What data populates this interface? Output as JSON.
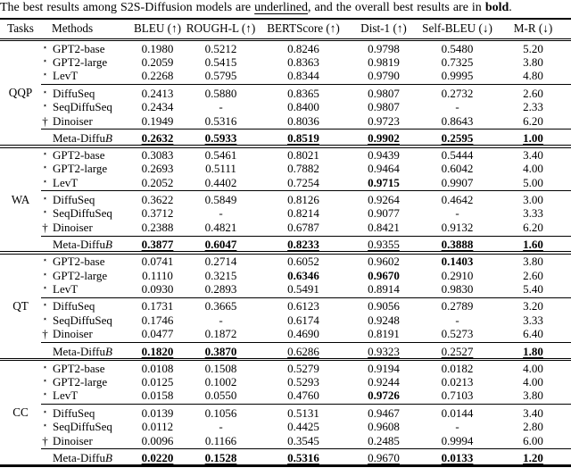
{
  "caption": {
    "part1": "The best results among S2S-Diffusion models are ",
    "underlined_word": "underlined",
    "part2": ", and the overall best results are in ",
    "bold_word": "bold",
    "part3": "."
  },
  "markers": {
    "star": "⋆",
    "dagger": "†"
  },
  "columns": [
    "Tasks",
    "Methods",
    "BLEU (↑)",
    "ROUGH-L (↑)",
    "BERTScore (↑)",
    "Dist-1 (↑)",
    "Self-BLEU (↓)",
    "M-R (↓)"
  ],
  "sections": [
    {
      "task": "QQP",
      "groups": [
        [
          {
            "marker": "star",
            "method": "GPT2-base",
            "values": [
              [
                "0.1980",
                ""
              ],
              [
                "0.5212",
                ""
              ],
              [
                "0.8246",
                ""
              ],
              [
                "0.9798",
                ""
              ],
              [
                "0.5480",
                ""
              ],
              [
                "5.20",
                ""
              ]
            ]
          },
          {
            "marker": "star",
            "method": "GPT2-large",
            "values": [
              [
                "0.2059",
                ""
              ],
              [
                "0.5415",
                ""
              ],
              [
                "0.8363",
                ""
              ],
              [
                "0.9819",
                ""
              ],
              [
                "0.7325",
                ""
              ],
              [
                "3.80",
                ""
              ]
            ]
          },
          {
            "marker": "star",
            "method": "LevT",
            "values": [
              [
                "0.2268",
                ""
              ],
              [
                "0.5795",
                ""
              ],
              [
                "0.8344",
                ""
              ],
              [
                "0.9790",
                ""
              ],
              [
                "0.9995",
                ""
              ],
              [
                "4.80",
                ""
              ]
            ]
          }
        ],
        [
          {
            "marker": "star",
            "method": "DiffuSeq",
            "values": [
              [
                "0.2413",
                ""
              ],
              [
                "0.5880",
                ""
              ],
              [
                "0.8365",
                ""
              ],
              [
                "0.9807",
                ""
              ],
              [
                "0.2732",
                ""
              ],
              [
                "2.60",
                ""
              ]
            ]
          },
          {
            "marker": "star",
            "method": "SeqDiffuSeq",
            "values": [
              [
                "0.2434",
                ""
              ],
              [
                "-",
                ""
              ],
              [
                "0.8400",
                ""
              ],
              [
                "0.9807",
                ""
              ],
              [
                "-",
                ""
              ],
              [
                "2.33",
                ""
              ]
            ]
          },
          {
            "marker": "dagger",
            "method": "Dinoiser",
            "values": [
              [
                "0.1949",
                ""
              ],
              [
                "0.5316",
                ""
              ],
              [
                "0.8036",
                ""
              ],
              [
                "0.9723",
                ""
              ],
              [
                "0.8643",
                ""
              ],
              [
                "6.20",
                ""
              ]
            ]
          }
        ],
        [
          {
            "marker": "",
            "method": "Meta-Diffu",
            "method_italic_suffix": "B",
            "values": [
              [
                "0.2632",
                "bu"
              ],
              [
                "0.5933",
                "bu"
              ],
              [
                "0.8519",
                "bu"
              ],
              [
                "0.9902",
                "bu"
              ],
              [
                "0.2595",
                "bu"
              ],
              [
                "1.00",
                "bu"
              ]
            ]
          }
        ]
      ]
    },
    {
      "task": "WA",
      "groups": [
        [
          {
            "marker": "star",
            "method": "GPT2-base",
            "values": [
              [
                "0.3083",
                ""
              ],
              [
                "0.5461",
                ""
              ],
              [
                "0.8021",
                ""
              ],
              [
                "0.9439",
                ""
              ],
              [
                "0.5444",
                ""
              ],
              [
                "3.40",
                ""
              ]
            ]
          },
          {
            "marker": "star",
            "method": "GPT2-large",
            "values": [
              [
                "0.2693",
                ""
              ],
              [
                "0.5111",
                ""
              ],
              [
                "0.7882",
                ""
              ],
              [
                "0.9464",
                ""
              ],
              [
                "0.6042",
                ""
              ],
              [
                "4.00",
                ""
              ]
            ]
          },
          {
            "marker": "star",
            "method": "LevT",
            "values": [
              [
                "0.2052",
                ""
              ],
              [
                "0.4402",
                ""
              ],
              [
                "0.7254",
                ""
              ],
              [
                "0.9715",
                "b"
              ],
              [
                "0.9907",
                ""
              ],
              [
                "5.00",
                ""
              ]
            ]
          }
        ],
        [
          {
            "marker": "star",
            "method": "DiffuSeq",
            "values": [
              [
                "0.3622",
                ""
              ],
              [
                "0.5849",
                ""
              ],
              [
                "0.8126",
                ""
              ],
              [
                "0.9264",
                ""
              ],
              [
                "0.4642",
                ""
              ],
              [
                "3.00",
                ""
              ]
            ]
          },
          {
            "marker": "star",
            "method": "SeqDiffuSeq",
            "values": [
              [
                "0.3712",
                ""
              ],
              [
                "-",
                ""
              ],
              [
                "0.8214",
                ""
              ],
              [
                "0.9077",
                ""
              ],
              [
                "-",
                ""
              ],
              [
                "3.33",
                ""
              ]
            ]
          },
          {
            "marker": "dagger",
            "method": "Dinoiser",
            "values": [
              [
                "0.2388",
                ""
              ],
              [
                "0.4821",
                ""
              ],
              [
                "0.6787",
                ""
              ],
              [
                "0.8421",
                ""
              ],
              [
                "0.9132",
                ""
              ],
              [
                "6.20",
                ""
              ]
            ]
          }
        ],
        [
          {
            "marker": "",
            "method": "Meta-Diffu",
            "method_italic_suffix": "B",
            "values": [
              [
                "0.3877",
                "bu"
              ],
              [
                "0.6047",
                "bu"
              ],
              [
                "0.8233",
                "bu"
              ],
              [
                "0.9355",
                "u"
              ],
              [
                "0.3888",
                "bu"
              ],
              [
                "1.60",
                "bu"
              ]
            ]
          }
        ]
      ]
    },
    {
      "task": "QT",
      "groups": [
        [
          {
            "marker": "star",
            "method": "GPT2-base",
            "values": [
              [
                "0.0741",
                ""
              ],
              [
                "0.2714",
                ""
              ],
              [
                "0.6052",
                ""
              ],
              [
                "0.9602",
                ""
              ],
              [
                "0.1403",
                "b"
              ],
              [
                "3.80",
                ""
              ]
            ]
          },
          {
            "marker": "star",
            "method": "GPT2-large",
            "values": [
              [
                "0.1110",
                ""
              ],
              [
                "0.3215",
                ""
              ],
              [
                "0.6346",
                "b"
              ],
              [
                "0.9670",
                "b"
              ],
              [
                "0.2910",
                ""
              ],
              [
                "2.60",
                ""
              ]
            ]
          },
          {
            "marker": "star",
            "method": "LevT",
            "values": [
              [
                "0.0930",
                ""
              ],
              [
                "0.2893",
                ""
              ],
              [
                "0.5491",
                ""
              ],
              [
                "0.8914",
                ""
              ],
              [
                "0.9830",
                ""
              ],
              [
                "5.40",
                ""
              ]
            ]
          }
        ],
        [
          {
            "marker": "star",
            "method": "DiffuSeq",
            "values": [
              [
                "0.1731",
                ""
              ],
              [
                "0.3665",
                ""
              ],
              [
                "0.6123",
                ""
              ],
              [
                "0.9056",
                ""
              ],
              [
                "0.2789",
                ""
              ],
              [
                "3.20",
                ""
              ]
            ]
          },
          {
            "marker": "star",
            "method": "SeqDiffuSeq",
            "values": [
              [
                "0.1746",
                ""
              ],
              [
                "-",
                ""
              ],
              [
                "0.6174",
                ""
              ],
              [
                "0.9248",
                ""
              ],
              [
                "-",
                ""
              ],
              [
                "3.33",
                ""
              ]
            ]
          },
          {
            "marker": "dagger",
            "method": "Dinoiser",
            "values": [
              [
                "0.0477",
                ""
              ],
              [
                "0.1872",
                ""
              ],
              [
                "0.4690",
                ""
              ],
              [
                "0.8191",
                ""
              ],
              [
                "0.5273",
                ""
              ],
              [
                "6.40",
                ""
              ]
            ]
          }
        ],
        [
          {
            "marker": "",
            "method": "Meta-Diffu",
            "method_italic_suffix": "B",
            "values": [
              [
                "0.1820",
                "bu"
              ],
              [
                "0.3870",
                "bu"
              ],
              [
                "0.6286",
                "u"
              ],
              [
                "0.9323",
                "u"
              ],
              [
                "0.2527",
                "u"
              ],
              [
                "1.80",
                "bu"
              ]
            ]
          }
        ]
      ]
    },
    {
      "task": "CC",
      "groups": [
        [
          {
            "marker": "star",
            "method": "GPT2-base",
            "values": [
              [
                "0.0108",
                ""
              ],
              [
                "0.1508",
                ""
              ],
              [
                "0.5279",
                ""
              ],
              [
                "0.9194",
                ""
              ],
              [
                "0.0182",
                ""
              ],
              [
                "4.00",
                ""
              ]
            ]
          },
          {
            "marker": "star",
            "method": "GPT2-large",
            "values": [
              [
                "0.0125",
                ""
              ],
              [
                "0.1002",
                ""
              ],
              [
                "0.5293",
                ""
              ],
              [
                "0.9244",
                ""
              ],
              [
                "0.0213",
                ""
              ],
              [
                "4.00",
                ""
              ]
            ]
          },
          {
            "marker": "star",
            "method": "LevT",
            "values": [
              [
                "0.0158",
                ""
              ],
              [
                "0.0550",
                ""
              ],
              [
                "0.4760",
                ""
              ],
              [
                "0.9726",
                "b"
              ],
              [
                "0.7103",
                ""
              ],
              [
                "3.80",
                ""
              ]
            ]
          }
        ],
        [
          {
            "marker": "star",
            "method": "DiffuSeq",
            "values": [
              [
                "0.0139",
                ""
              ],
              [
                "0.1056",
                ""
              ],
              [
                "0.5131",
                ""
              ],
              [
                "0.9467",
                ""
              ],
              [
                "0.0144",
                ""
              ],
              [
                "3.40",
                ""
              ]
            ]
          },
          {
            "marker": "star",
            "method": "SeqDiffuSeq",
            "values": [
              [
                "0.0112",
                ""
              ],
              [
                "-",
                ""
              ],
              [
                "0.4425",
                ""
              ],
              [
                "0.9608",
                ""
              ],
              [
                "-",
                ""
              ],
              [
                "2.80",
                ""
              ]
            ]
          },
          {
            "marker": "dagger",
            "method": "Dinoiser",
            "values": [
              [
                "0.0096",
                ""
              ],
              [
                "0.1166",
                ""
              ],
              [
                "0.3545",
                ""
              ],
              [
                "0.2485",
                ""
              ],
              [
                "0.9994",
                ""
              ],
              [
                "6.00",
                ""
              ]
            ]
          }
        ],
        [
          {
            "marker": "",
            "method": "Meta-Diffu",
            "method_italic_suffix": "B",
            "values": [
              [
                "0.0220",
                "bu"
              ],
              [
                "0.1528",
                "bu"
              ],
              [
                "0.5316",
                "bu"
              ],
              [
                "0.9670",
                "u"
              ],
              [
                "0.0133",
                "bu"
              ],
              [
                "1.20",
                "bu"
              ]
            ]
          }
        ]
      ]
    }
  ]
}
